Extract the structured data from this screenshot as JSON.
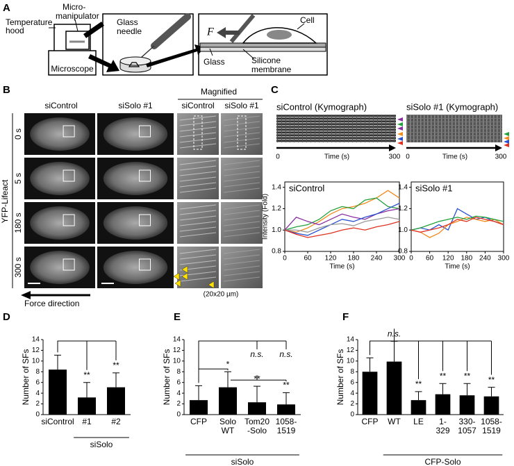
{
  "panel_labels": [
    "A",
    "B",
    "C",
    "D",
    "E",
    "F"
  ],
  "panel_a": {
    "temperature_hood": [
      "Temperature",
      "hood"
    ],
    "micromanipulator": [
      "Micro-",
      "manipulator"
    ],
    "microscope": "Microscope",
    "glass_needle": [
      "Glass",
      "needle"
    ],
    "force": "F",
    "cell": "Cell",
    "glass": "Glass",
    "silicone_membrane": [
      "Silicone",
      "membrane"
    ]
  },
  "panel_b": {
    "columns": [
      "siControl",
      "siSolo #1",
      "siControl",
      "siSolo #1"
    ],
    "magnified": "Magnified",
    "channel": "YFP-Lifeact",
    "rows": [
      "0 s",
      "5 s",
      "180 s",
      "300 s"
    ],
    "force_direction": "Force direction",
    "scale_note": "(20x20 µm)"
  },
  "panel_c": {
    "kymographs": [
      {
        "title": "siControl (Kymograph)",
        "start": "0",
        "axis_label": "Time (s)",
        "end": "300"
      },
      {
        "title": "siSolo #1 (Kymograph)",
        "start": "0",
        "axis_label": "Time (s)",
        "end": "300"
      }
    ]
  },
  "chart_data": [
    {
      "type": "line",
      "title": "siControl",
      "xlabel": "Time (s)",
      "ylabel": "Intensity (Fold)",
      "x": [
        0,
        30,
        60,
        90,
        120,
        150,
        180,
        210,
        240,
        270,
        300
      ],
      "series": [
        {
          "color": "#f28a1e",
          "values": [
            1.0,
            0.98,
            1.02,
            1.08,
            1.15,
            1.2,
            1.22,
            1.25,
            1.3,
            1.37,
            1.3
          ]
        },
        {
          "color": "#22a03a",
          "values": [
            1.0,
            1.03,
            1.05,
            1.1,
            1.18,
            1.22,
            1.2,
            1.28,
            1.3,
            1.22,
            1.2
          ]
        },
        {
          "color": "#8a2ea0",
          "values": [
            1.0,
            1.12,
            1.08,
            1.05,
            1.1,
            1.15,
            1.12,
            1.1,
            1.15,
            1.18,
            1.2
          ]
        },
        {
          "color": "#2850d0",
          "values": [
            1.0,
            0.97,
            0.95,
            1.0,
            1.05,
            1.1,
            1.08,
            1.12,
            1.15,
            1.2,
            1.25
          ]
        },
        {
          "color": "#999999",
          "values": [
            1.0,
            1.0,
            0.98,
            1.02,
            1.05,
            1.06,
            1.04,
            1.08,
            1.1,
            1.12,
            1.1
          ]
        },
        {
          "color": "#e03020",
          "values": [
            1.0,
            0.96,
            0.93,
            0.95,
            0.97,
            1.0,
            1.02,
            1.0,
            1.03,
            1.05,
            1.08
          ]
        }
      ],
      "xlim": [
        0,
        300
      ],
      "xticks": [
        0,
        60,
        120,
        180,
        240,
        300
      ],
      "ylim": [
        0.8,
        1.45
      ],
      "yticks": [
        0.8,
        {
          "value": 1,
          "label": "1.0"
        },
        1.2,
        1.4
      ]
    },
    {
      "type": "line",
      "title": "siSolo #1",
      "xlabel": "Time (s)",
      "x": [
        0,
        30,
        60,
        90,
        120,
        150,
        180,
        210,
        240,
        270,
        300
      ],
      "series": [
        {
          "color": "#2850d0",
          "values": [
            1.0,
            1.02,
            1.0,
            1.05,
            1.0,
            1.2,
            1.15,
            1.1,
            1.12,
            1.08,
            1.05
          ]
        },
        {
          "color": "#f28a1e",
          "values": [
            1.0,
            0.98,
            0.93,
            0.97,
            1.05,
            1.08,
            1.12,
            1.1,
            1.08,
            1.1,
            1.05
          ]
        },
        {
          "color": "#22a03a",
          "values": [
            1.0,
            1.02,
            1.05,
            1.08,
            1.1,
            1.12,
            1.1,
            1.13,
            1.12,
            1.1,
            1.08
          ]
        },
        {
          "color": "#e03020",
          "values": [
            1.0,
            0.98,
            1.0,
            1.02,
            1.05,
            1.1,
            1.08,
            1.12,
            1.1,
            1.08,
            1.05
          ]
        }
      ],
      "xlim": [
        0,
        300
      ],
      "xticks": [
        0,
        60,
        120,
        180,
        240,
        300
      ],
      "ylim": [
        0.8,
        1.45
      ],
      "yticks": [
        0.8,
        {
          "value": 1,
          "label": "1.0"
        },
        1.2,
        1.4
      ]
    },
    {
      "type": "bar",
      "ylabel": "Number of SFs",
      "color": "#000000",
      "categories": [
        [
          "siControl"
        ],
        [
          "#1"
        ],
        [
          "#2"
        ]
      ],
      "values": [
        8.4,
        3.2,
        5.1
      ],
      "errors": [
        2.7,
        2.8,
        2.7
      ],
      "significance": [
        null,
        "**",
        "**"
      ],
      "group_label": "siSolo",
      "ylim": [
        0,
        14
      ],
      "yticks": [
        0,
        2,
        4,
        6,
        8,
        10,
        12,
        14
      ]
    },
    {
      "type": "bar",
      "ylabel": "Number of SFs",
      "color": "#000000",
      "categories": [
        [
          "CFP"
        ],
        [
          "Solo",
          "WT"
        ],
        [
          "Tom20",
          "-Solo"
        ],
        [
          "1058-",
          "1519"
        ]
      ],
      "values": [
        2.7,
        5.1,
        2.3,
        1.9
      ],
      "errors": [
        2.7,
        2.9,
        3.0,
        2.2
      ],
      "significance": [
        null,
        "*",
        "**",
        "**"
      ],
      "significance_vs_cfp": [
        null,
        null,
        "n.s.",
        "n.s."
      ],
      "group_label": "siSolo",
      "ylim": [
        0,
        14
      ],
      "yticks": [
        0,
        2,
        4,
        6,
        8,
        10,
        12,
        14
      ]
    },
    {
      "type": "bar",
      "ylabel": "Number of SFs",
      "color": "#000000",
      "categories": [
        [
          "CFP"
        ],
        [
          "WT"
        ],
        [
          "LE"
        ],
        [
          "1-",
          "329"
        ],
        [
          "330-",
          "1057"
        ],
        [
          "1058-",
          "1519"
        ]
      ],
      "values": [
        8.0,
        9.9,
        2.7,
        3.8,
        3.6,
        3.4
      ],
      "errors": [
        2.6,
        3.8,
        1.6,
        2.0,
        2.2,
        1.7
      ],
      "significance": [
        null,
        "n.s.",
        "**",
        "**",
        "**",
        "**"
      ],
      "group_label": "CFP-Solo",
      "ylim": [
        0,
        14
      ],
      "yticks": [
        0,
        2,
        4,
        6,
        8,
        10,
        12,
        14
      ]
    }
  ]
}
